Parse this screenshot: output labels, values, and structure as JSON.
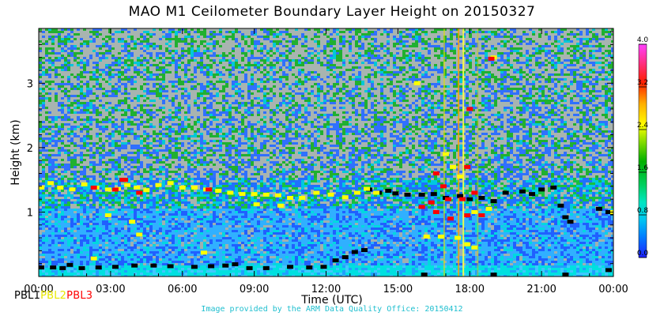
{
  "chart_data": {
    "type": "heatmap",
    "title": "MAO M1 Ceilometer Boundary Layer Height on 20150327",
    "xlabel": "Time (UTC)",
    "ylabel": "Height (km)",
    "x_ticks": [
      "00:00",
      "03:00",
      "06:00",
      "09:00",
      "12:00",
      "15:00",
      "18:00",
      "21:00",
      "00:00"
    ],
    "x_range_hours": [
      0,
      24
    ],
    "y_ticks": [
      1,
      2,
      3
    ],
    "ylim": [
      0,
      3.85
    ],
    "colorbar": {
      "ticks": [
        "0.0",
        "0.8",
        "1.6",
        "2.4",
        "3.2",
        "4.0"
      ],
      "range": [
        0,
        4.0
      ],
      "colors": [
        "#0000ff",
        "#00a0ff",
        "#00e0e0",
        "#00d000",
        "#00a000",
        "#ffff00",
        "#ffa000",
        "#ff0000",
        "#ff00ff"
      ]
    },
    "series": [
      {
        "name": "PBL1",
        "color": "#000000",
        "points": [
          [
            0.1,
            0.14
          ],
          [
            0.6,
            0.14
          ],
          [
            1.0,
            0.13
          ],
          [
            1.3,
            0.18
          ],
          [
            1.8,
            0.13
          ],
          [
            2.5,
            0.14
          ],
          [
            3.2,
            0.15
          ],
          [
            4.0,
            0.17
          ],
          [
            4.8,
            0.17
          ],
          [
            5.5,
            0.16
          ],
          [
            6.5,
            0.15
          ],
          [
            7.2,
            0.16
          ],
          [
            7.8,
            0.17
          ],
          [
            8.2,
            0.19
          ],
          [
            8.8,
            0.13
          ],
          [
            9.5,
            0.13
          ],
          [
            10.5,
            0.15
          ],
          [
            11.3,
            0.14
          ],
          [
            11.9,
            0.15
          ],
          [
            12.4,
            0.25
          ],
          [
            12.8,
            0.3
          ],
          [
            13.2,
            0.38
          ],
          [
            13.6,
            0.41
          ],
          [
            13.8,
            1.35
          ],
          [
            14.2,
            1.3
          ],
          [
            14.6,
            1.33
          ],
          [
            14.9,
            1.29
          ],
          [
            15.4,
            1.27
          ],
          [
            16.0,
            1.27
          ],
          [
            16.5,
            1.28
          ],
          [
            17.0,
            1.22
          ],
          [
            17.6,
            1.25
          ],
          [
            18.0,
            1.2
          ],
          [
            18.5,
            1.22
          ],
          [
            19.0,
            1.17
          ],
          [
            19.5,
            1.3
          ],
          [
            20.2,
            1.32
          ],
          [
            20.6,
            1.28
          ],
          [
            21.0,
            1.35
          ],
          [
            21.5,
            1.38
          ],
          [
            21.8,
            1.1
          ],
          [
            22.0,
            0.92
          ],
          [
            22.2,
            0.85
          ],
          [
            23.4,
            1.05
          ],
          [
            23.8,
            1.0
          ],
          [
            24.0,
            0.98
          ],
          [
            16.1,
            0.03
          ],
          [
            19.0,
            0.03
          ],
          [
            22.0,
            0.03
          ],
          [
            23.8,
            0.1
          ]
        ]
      },
      {
        "name": "PBL2",
        "color": "#ffff00",
        "points": [
          [
            0.1,
            1.38
          ],
          [
            0.5,
            1.45
          ],
          [
            0.9,
            1.38
          ],
          [
            1.4,
            1.35
          ],
          [
            1.9,
            1.43
          ],
          [
            2.4,
            1.38
          ],
          [
            2.9,
            1.35
          ],
          [
            3.3,
            1.36
          ],
          [
            3.7,
            1.42
          ],
          [
            4.1,
            1.38
          ],
          [
            4.5,
            1.34
          ],
          [
            5.0,
            1.42
          ],
          [
            5.5,
            1.45
          ],
          [
            6.0,
            1.38
          ],
          [
            6.5,
            1.38
          ],
          [
            7.0,
            1.35
          ],
          [
            7.5,
            1.33
          ],
          [
            8.0,
            1.3
          ],
          [
            8.5,
            1.28
          ],
          [
            9.0,
            1.28
          ],
          [
            9.5,
            1.27
          ],
          [
            10.0,
            1.26
          ],
          [
            10.5,
            1.22
          ],
          [
            11.0,
            1.22
          ],
          [
            11.6,
            1.3
          ],
          [
            12.2,
            1.27
          ],
          [
            12.8,
            1.23
          ],
          [
            13.3,
            1.3
          ],
          [
            13.7,
            1.36
          ],
          [
            14.1,
            1.3
          ],
          [
            15.8,
            3.0
          ],
          [
            17.0,
            1.9
          ],
          [
            17.3,
            1.7
          ],
          [
            17.6,
            1.55
          ],
          [
            18.2,
            1.0
          ],
          [
            18.8,
            1.05
          ],
          [
            19.0,
            3.4
          ],
          [
            24.0,
            1.0
          ],
          [
            2.9,
            0.95
          ],
          [
            3.9,
            0.85
          ],
          [
            4.2,
            0.65
          ],
          [
            2.3,
            0.28
          ],
          [
            6.9,
            0.37
          ],
          [
            9.1,
            1.12
          ],
          [
            10.1,
            1.1
          ],
          [
            16.2,
            0.62
          ],
          [
            16.8,
            0.62
          ],
          [
            17.5,
            0.6
          ],
          [
            17.9,
            0.5
          ],
          [
            18.2,
            0.45
          ]
        ]
      },
      {
        "name": "PBL3",
        "color": "#ff0000",
        "points": [
          [
            2.3,
            1.38
          ],
          [
            3.2,
            1.35
          ],
          [
            3.5,
            1.5
          ],
          [
            3.6,
            1.5
          ],
          [
            4.2,
            1.3
          ],
          [
            7.1,
            1.35
          ],
          [
            16.0,
            1.08
          ],
          [
            16.4,
            1.15
          ],
          [
            16.6,
            1.6
          ],
          [
            16.9,
            1.4
          ],
          [
            17.1,
            1.2
          ],
          [
            17.2,
            0.9
          ],
          [
            17.7,
            1.2
          ],
          [
            17.9,
            1.7
          ],
          [
            18.0,
            2.6
          ],
          [
            18.2,
            1.3
          ],
          [
            18.5,
            0.95
          ],
          [
            18.9,
            3.38
          ],
          [
            16.6,
            1.0
          ],
          [
            17.9,
            0.95
          ]
        ]
      }
    ]
  },
  "legend": {
    "pbl1": "PBL1",
    "pbl2": "PBL2",
    "pbl3": "PBL3"
  },
  "credit": "Image provided by the ARM Data Quality Office: 20150412"
}
